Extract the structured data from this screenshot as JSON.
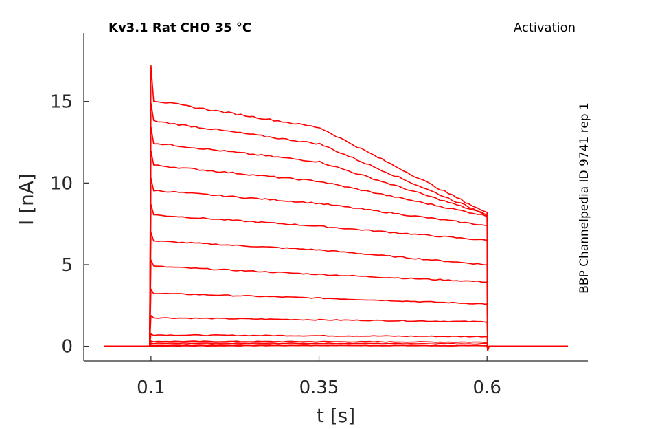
{
  "chart_data": {
    "type": "line",
    "title": "Kv3.1  Rat  CHO  35 °C",
    "subtitle": "Activation",
    "side_label": "BBP Channelpedia ID 9741 rep 1",
    "xlabel": "t [s]",
    "ylabel": "I [nA]",
    "xlim": [
      -0.0,
      0.75
    ],
    "ylim": [
      -0.9,
      19.2
    ],
    "xticks": [
      0.1,
      0.35,
      0.6
    ],
    "xtick_labels": [
      "0.1",
      "0.35",
      "0.6"
    ],
    "yticks": [
      0,
      5,
      10,
      15
    ],
    "ytick_labels": [
      "0",
      "5",
      "10",
      "15"
    ],
    "grid": false,
    "line_color": "#ff0000",
    "x_range": [
      0.03,
      0.72
    ],
    "pulse": {
      "start": 0.1,
      "end": 0.6
    },
    "series": [
      {
        "values": [
          0.0,
          0.02,
          0.05,
          0.03,
          0.0
        ]
      },
      {
        "values": [
          0.0,
          0.06,
          0.06,
          0.04,
          0.0
        ]
      },
      {
        "values": [
          0.0,
          0.18,
          0.18,
          0.15,
          0.0
        ]
      },
      {
        "values": [
          0.0,
          0.3,
          0.28,
          0.25,
          0.0
        ]
      },
      {
        "values": [
          0.0,
          0.7,
          0.65,
          0.6,
          0.0
        ]
      },
      {
        "values": [
          0.0,
          1.75,
          1.62,
          1.5,
          0.0
        ]
      },
      {
        "values": [
          0.0,
          3.25,
          2.95,
          2.6,
          0.0
        ]
      },
      {
        "values": [
          0.0,
          4.9,
          4.4,
          3.95,
          0.0
        ]
      },
      {
        "values": [
          0.0,
          6.45,
          5.9,
          5.0,
          0.0
        ]
      },
      {
        "values": [
          0.0,
          8.05,
          7.35,
          6.5,
          0.0
        ]
      },
      {
        "values": [
          0.0,
          9.55,
          8.75,
          7.4,
          0.0
        ]
      },
      {
        "values": [
          0.0,
          11.1,
          10.1,
          8.0,
          0.0
        ]
      },
      {
        "values": [
          0.0,
          12.45,
          11.3,
          8.1,
          0.0
        ]
      },
      {
        "values": [
          0.0,
          13.8,
          12.4,
          8.1,
          0.0
        ]
      },
      {
        "values": [
          0.0,
          15.05,
          13.4,
          8.2,
          0.0
        ]
      }
    ],
    "peak_transient": 17.2
  }
}
